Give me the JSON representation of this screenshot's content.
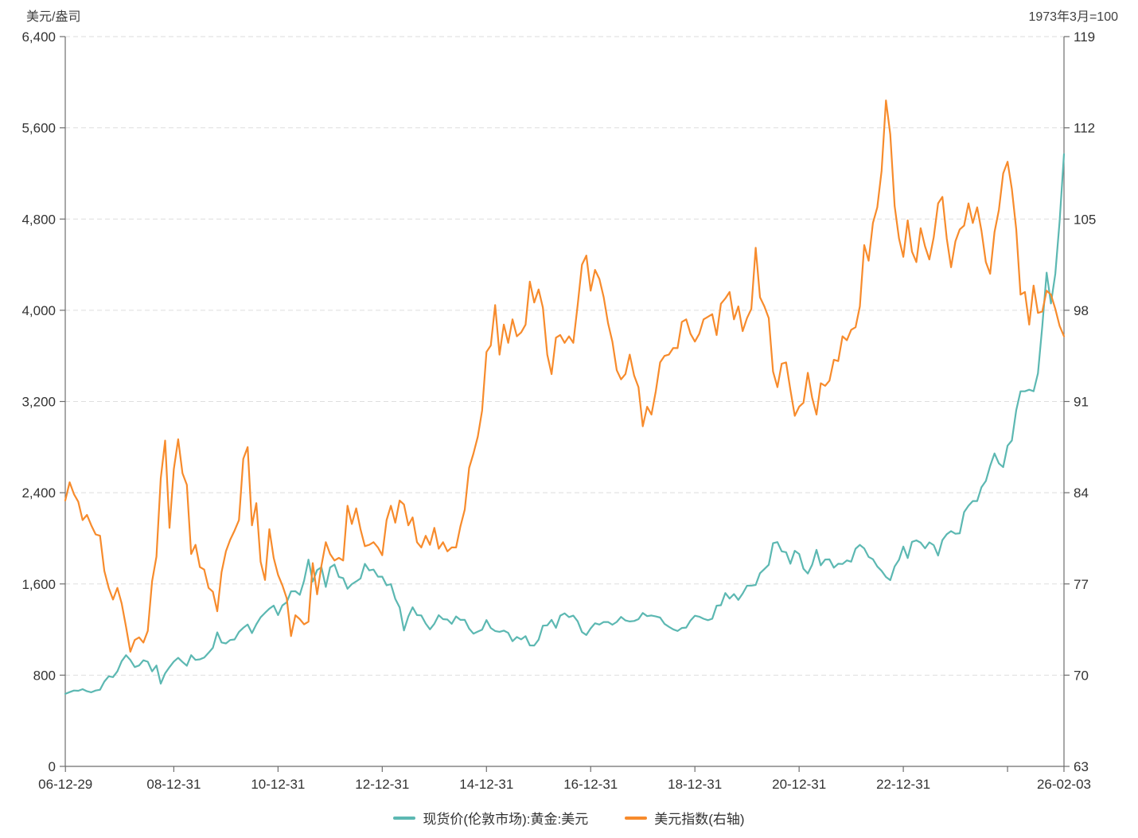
{
  "titles": {
    "left": "美元/盎司",
    "right": "1973年3月=100"
  },
  "legend": {
    "items": [
      {
        "label": "现货价(伦敦市场):黄金:美元",
        "color": "#5cb8b2"
      },
      {
        "label": "美元指数(右轴)",
        "color": "#f78b2c"
      }
    ]
  },
  "chart_data": {
    "type": "line",
    "title": "",
    "grid": {
      "dashed": true,
      "color": "#dedede"
    },
    "axis_color": "#6e6e6e",
    "text_color": "#333333",
    "x_axis": {
      "start_year": 2006,
      "start_month": 12,
      "frequency": "monthly",
      "ticks": [
        {
          "pos": 2006.92,
          "label": "06-12-29"
        },
        {
          "pos": 2009.0,
          "label": "08-12-31"
        },
        {
          "pos": 2011.0,
          "label": "10-12-31"
        },
        {
          "pos": 2013.0,
          "label": "12-12-31"
        },
        {
          "pos": 2015.0,
          "label": "14-12-31"
        },
        {
          "pos": 2017.0,
          "label": "16-12-31"
        },
        {
          "pos": 2019.0,
          "label": "18-12-31"
        },
        {
          "pos": 2021.0,
          "label": "20-12-31"
        },
        {
          "pos": 2023.0,
          "label": "22-12-31"
        },
        {
          "pos": 2025.0,
          "label": ""
        },
        {
          "pos": 2026.083,
          "label": "26-02-03"
        }
      ]
    },
    "left_axis": {
      "title": "美元/盎司",
      "min": 0,
      "max": 6400,
      "step": 800,
      "tick_labels": [
        "0",
        "800",
        "1,600",
        "2,400",
        "3,200",
        "4,000",
        "4,800",
        "5,600",
        "6,400"
      ]
    },
    "right_axis": {
      "title": "1973年3月=100",
      "min": 63,
      "max": 119,
      "step": 7,
      "tick_labels": [
        "63",
        "70",
        "77",
        "84",
        "91",
        "98",
        "105",
        "112",
        "119"
      ]
    },
    "series": [
      {
        "name": "现货价(伦敦市场):黄金:美元",
        "axis": "left",
        "color": "#5cb8b2",
        "unit": "USD/oz",
        "values": [
          [
            636
          ],
          [
            651,
            665,
            663,
            677,
            659,
            650,
            665,
            672,
            743,
            790,
            783,
            833
          ],
          [
            923,
            975,
            933,
            871,
            885,
            930,
            918,
            833,
            884,
            725,
            816,
            870
          ],
          [
            919,
            952,
            916,
            883,
            975,
            934,
            939,
            955,
            996,
            1040,
            1175,
            1087
          ],
          [
            1078,
            1108,
            1113,
            1179,
            1215,
            1244,
            1169,
            1246,
            1307,
            1346,
            1383,
            1410
          ],
          [
            1327,
            1411,
            1439,
            1535,
            1536,
            1505,
            1628,
            1813,
            1620,
            1722,
            1746,
            1574
          ],
          [
            1744,
            1770,
            1662,
            1651,
            1558,
            1598,
            1622,
            1648,
            1776,
            1719,
            1726,
            1664
          ],
          [
            1664,
            1588,
            1598,
            1469,
            1394,
            1192,
            1314,
            1395,
            1327,
            1324,
            1253,
            1202
          ],
          [
            1251,
            1326,
            1291,
            1288,
            1250,
            1315,
            1285,
            1285,
            1208,
            1164,
            1182,
            1199
          ],
          [
            1283,
            1214,
            1187,
            1180,
            1191,
            1171,
            1098,
            1135,
            1114,
            1142,
            1061,
            1060
          ],
          [
            1111,
            1234,
            1237,
            1285,
            1215,
            1322,
            1342,
            1309,
            1322,
            1272,
            1178,
            1152
          ],
          [
            1210,
            1255,
            1244,
            1266,
            1266,
            1242,
            1267,
            1311,
            1280,
            1271,
            1275,
            1291
          ],
          [
            1345,
            1318,
            1323,
            1315,
            1305,
            1250,
            1224,
            1202,
            1187,
            1214,
            1217,
            1279
          ],
          [
            1321,
            1313,
            1295,
            1282,
            1295,
            1409,
            1413,
            1520,
            1472,
            1511,
            1460,
            1515
          ],
          [
            1584,
            1585,
            1591,
            1694,
            1730,
            1768,
            1957,
            1967,
            1886,
            1878,
            1777,
            1891
          ],
          [
            1863,
            1734,
            1691,
            1767,
            1899,
            1763,
            1814,
            1815,
            1743,
            1777,
            1775,
            1806
          ],
          [
            1795,
            1909,
            1942,
            1911,
            1837,
            1817,
            1753,
            1715,
            1661,
            1633,
            1753,
            1812
          ],
          [
            1928,
            1827,
            1969,
            1982,
            1962,
            1912,
            1965,
            1940,
            1849,
            1984,
            2036,
            2063
          ],
          [
            2040,
            2044,
            2230,
            2286,
            2327,
            2327,
            2448,
            2503,
            2635,
            2744,
            2657,
            2625
          ],
          [
            2812,
            2858,
            3124,
            3289,
            3289,
            3303,
            3290,
            3448,
            3859,
            4330,
            4060,
            4320
          ],
          [
            4780,
            5370
          ]
        ]
      },
      {
        "name": "美元指数(右轴)",
        "axis": "right",
        "color": "#f78b2c",
        "unit": "index (Mar 1973 = 100)",
        "values": [
          [
            83.4
          ],
          [
            84.8,
            83.9,
            83.3,
            81.9,
            82.3,
            81.5,
            80.8,
            80.7,
            78.0,
            76.7,
            75.8,
            76.7
          ],
          [
            75.5,
            73.7,
            71.8,
            72.7,
            72.9,
            72.5,
            73.4,
            77.2,
            79.1,
            85.1,
            88.0,
            81.3
          ],
          [
            85.8,
            88.1,
            85.5,
            84.6,
            79.3,
            80.0,
            78.3,
            78.1,
            76.7,
            76.4,
            74.9,
            77.9
          ],
          [
            79.5,
            80.4,
            81.1,
            81.9,
            86.6,
            87.5,
            81.5,
            83.2,
            78.7,
            77.3,
            81.2,
            79.0
          ],
          [
            77.7,
            76.9,
            75.9,
            73.0,
            74.6,
            74.3,
            73.9,
            74.1,
            78.6,
            76.2,
            78.4,
            80.2
          ],
          [
            79.3,
            78.8,
            79.0,
            78.8,
            83.0,
            81.6,
            82.8,
            81.2,
            79.9,
            80.0,
            80.2,
            79.8
          ],
          [
            79.2,
            81.9,
            83.0,
            81.7,
            83.4,
            83.1,
            81.5,
            82.1,
            80.2,
            79.8,
            80.7,
            80.0
          ],
          [
            81.3,
            79.7,
            80.2,
            79.5,
            79.8,
            79.8,
            81.4,
            82.7,
            85.9,
            87.0,
            88.3,
            90.3
          ],
          [
            94.8,
            95.3,
            98.4,
            94.6,
            96.9,
            95.5,
            97.3,
            96.0,
            96.3,
            96.9,
            100.2,
            98.6
          ],
          [
            99.6,
            98.2,
            94.6,
            93.1,
            95.9,
            96.1,
            95.5,
            96.0,
            95.5,
            98.4,
            101.5,
            102.2
          ],
          [
            99.5,
            101.1,
            100.4,
            99.0,
            97.0,
            95.6,
            93.4,
            92.7,
            93.1,
            94.6,
            93.0,
            92.1
          ],
          [
            89.1,
            90.6,
            90.0,
            91.8,
            94.0,
            94.5,
            94.6,
            95.1,
            95.1,
            97.1,
            97.3,
            96.2
          ],
          [
            95.6,
            96.2,
            97.3,
            97.5,
            97.7,
            96.1,
            98.5,
            98.9,
            99.4,
            97.3,
            98.3,
            96.4
          ],
          [
            97.4,
            98.1,
            102.8,
            99.0,
            98.3,
            97.4,
            93.3,
            92.1,
            93.9,
            94.0,
            91.9,
            89.9
          ],
          [
            90.6,
            90.9,
            93.2,
            91.3,
            90.0,
            92.4,
            92.2,
            92.6,
            94.2,
            94.1,
            96.0,
            95.7
          ],
          [
            96.5,
            96.7,
            98.3,
            103.0,
            101.8,
            104.7,
            105.9,
            108.7,
            114.1,
            111.5,
            106.0,
            103.5
          ],
          [
            102.1,
            104.9,
            102.5,
            101.7,
            104.3,
            102.9,
            101.9,
            103.6,
            106.2,
            106.7,
            103.5,
            101.3
          ],
          [
            103.3,
            104.2,
            104.5,
            106.2,
            104.7,
            105.9,
            104.1,
            101.7,
            100.8,
            104.0,
            105.7,
            108.5
          ],
          [
            109.4,
            107.3,
            104.2,
            99.2,
            99.4,
            96.9,
            99.9,
            97.8,
            97.9,
            99.5,
            99.2,
            98.1
          ],
          [
            96.8,
            96.0
          ]
        ]
      }
    ]
  }
}
